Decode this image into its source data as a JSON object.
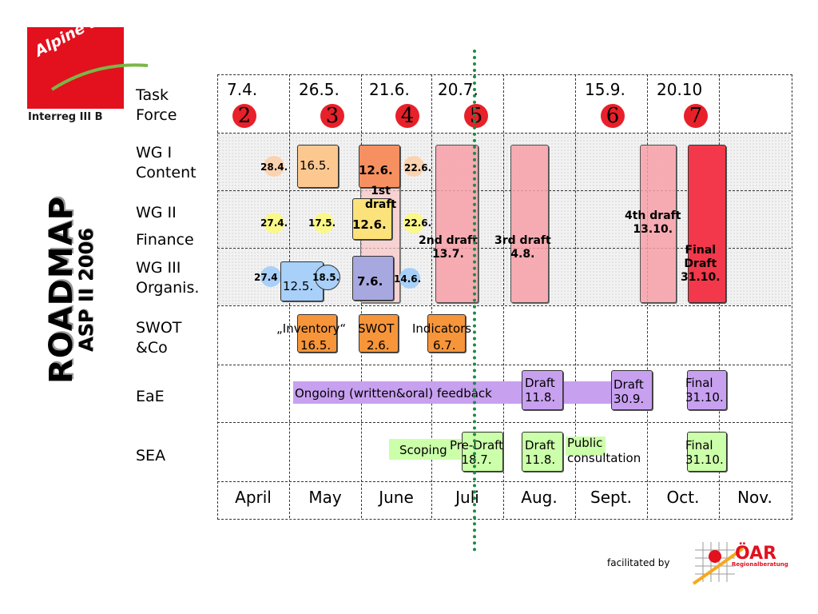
{
  "logo": {
    "name": "Alpine Space",
    "sub": "Interreg III B"
  },
  "title": {
    "main": "ROADMAP",
    "sub": "ASP II 2006"
  },
  "rows": {
    "task_force": "Task\nForce",
    "wg1": "WG I\nContent",
    "wg2": "WG II\nFinance",
    "wg3": "WG III\nOrganis.",
    "swot": "SWOT\n&Co",
    "eae": "EaE",
    "sea": "SEA"
  },
  "task_force": {
    "dates": [
      "7.4.",
      "26.5.",
      "21.6.",
      "20.7.",
      "15.9.",
      "20.10"
    ],
    "numbers": [
      "2",
      "3",
      "4",
      "5",
      "6",
      "7"
    ]
  },
  "months": [
    "April",
    "May",
    "June",
    "Juli",
    "Aug.",
    "Sept.",
    "Oct.",
    "Nov."
  ],
  "wg1": {
    "d1": "28.4.",
    "d2": "16.5.",
    "d3": "12.6.",
    "d4": "22.6."
  },
  "wg2": {
    "d1": "27.4.",
    "d2": "17.5.",
    "draft1": "1st\ndraft",
    "d3": "12.6.",
    "d4": "22.6."
  },
  "wg3": {
    "d1": "27.4",
    "d2": "12.5.",
    "d3": "18.5.",
    "d4": "7.6.",
    "d5": "14.6."
  },
  "drafts": {
    "second": "2nd draft\n13.7.",
    "third": "3rd draft\n4.8.",
    "fourth": "4th draft\n13.10.",
    "final": "Final\nDraft\n31.10."
  },
  "swot": {
    "inventory_label": "„Inventory“",
    "inventory_date": "16.5.",
    "swot_label": "SWOT",
    "swot_date": "2.6.",
    "indicators_label": "Indicators",
    "indicators_date": "6.7."
  },
  "eae": {
    "feedback": "Ongoing (written&oral) feedback",
    "draft1": "Draft\n11.8.",
    "draft2": "Draft\n30.9.",
    "final": "Final\n31.10."
  },
  "sea": {
    "scoping": "Scoping",
    "predraft": "Pre-Draft\n18.7.",
    "draft": "Draft\n11.8.",
    "public": "Public\nconsultation",
    "final": "Final\n31.10."
  },
  "footer": {
    "facilitated": "facilitated by",
    "oar": "ÖAR",
    "oar_sub": "Regionalberatung"
  },
  "colors": {
    "red": "#e8202a",
    "green_line": "#1e8a45",
    "orange": "#f7953a",
    "purple": "#c8a0f0",
    "light_green": "#ccffaa"
  }
}
